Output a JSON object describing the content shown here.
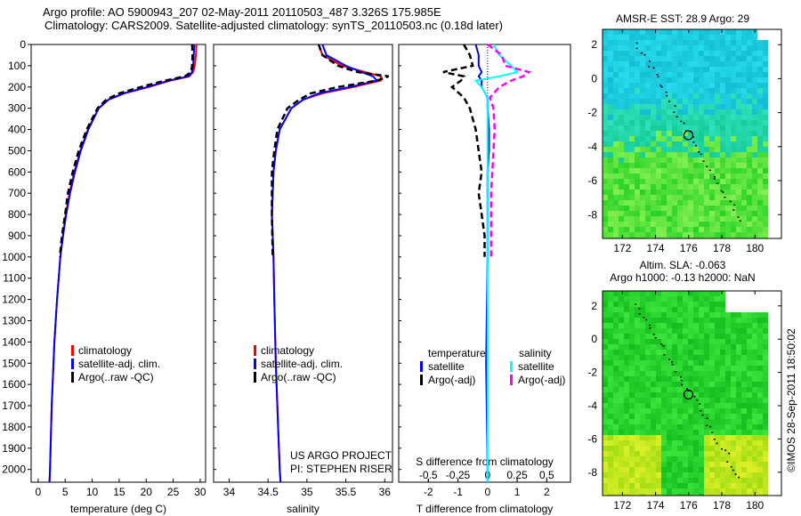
{
  "title_line1": "Argo profile: AO 5900943_207 02-May-2011 20110503_487 3.326S 175.985E",
  "title_line2": "Climatology: CARS2009. Satellite-adjusted climatology: synTS_20110503.nc (0.18d later)",
  "side_stamp": "©IMOS 28-Sep-2011 18:50:02",
  "colors": {
    "climatology": "#ff0000",
    "satellite": "#0000ff",
    "argo": "#000000",
    "sal_sat": "#00ffff",
    "sal_argo": "#ff00ff"
  },
  "chart_data": [
    {
      "type": "line",
      "xlabel": "temperature (deg C)",
      "xlim": [
        -1.3,
        31
      ],
      "ylim": [
        0,
        2060
      ],
      "yticks": [
        0,
        100,
        200,
        300,
        400,
        500,
        600,
        700,
        800,
        900,
        1000,
        1100,
        1200,
        1300,
        1400,
        1500,
        1600,
        1700,
        1800,
        1900,
        2000
      ],
      "xticks": [
        0,
        5,
        10,
        15,
        20,
        25,
        30
      ],
      "legend": [
        "climatology",
        "satellite-adj. clim.",
        "Argo(..raw -QC)"
      ],
      "depth": [
        0,
        50,
        100,
        130,
        150,
        170,
        200,
        230,
        260,
        300,
        400,
        500,
        600,
        700,
        800,
        900,
        1000,
        1200,
        1400,
        1700,
        2000,
        2060
      ],
      "series": [
        {
          "name": "climatology",
          "values": [
            29.3,
            29.2,
            29.0,
            28.7,
            28.0,
            24.5,
            20.5,
            16,
            13,
            11.2,
            9.2,
            7.8,
            6.7,
            5.8,
            5.1,
            4.6,
            4.1,
            3.5,
            3.0,
            2.5,
            2.2,
            2.1
          ]
        },
        {
          "name": "satellite-adj. clim.",
          "values": [
            28.9,
            28.8,
            28.7,
            28.5,
            27.8,
            24.2,
            20.2,
            15.8,
            13,
            11.2,
            9.3,
            7.9,
            6.8,
            5.9,
            5.2,
            4.6,
            4.1,
            3.5,
            3.0,
            2.5,
            2.2,
            2.1
          ]
        },
        {
          "name": "Argo(..raw -QC)",
          "values": [
            28.5,
            28.6,
            28.5,
            28.3,
            27.2,
            23.5,
            19.0,
            15.0,
            12.6,
            11.0,
            9.0,
            7.5,
            6.4,
            5.5,
            5.0,
            4.4,
            4.0,
            null,
            null,
            null,
            null,
            null
          ]
        }
      ]
    },
    {
      "type": "line",
      "xlabel": "salinity",
      "xlim": [
        33.8,
        36.1
      ],
      "xticks": [
        34,
        34.5,
        35,
        35.5,
        36
      ],
      "legend": [
        "climatology",
        "satellite-adj. clim.",
        "Argo(..raw -QC)"
      ],
      "annotation": [
        "US ARGO PROJECT",
        "PI: STEPHEN RISER"
      ],
      "depth": [
        0,
        50,
        100,
        130,
        150,
        170,
        200,
        230,
        260,
        300,
        400,
        500,
        600,
        800,
        1000,
        1200,
        1500,
        1800,
        2000,
        2060
      ],
      "series": [
        {
          "name": "climatology",
          "values": [
            35.15,
            35.2,
            35.45,
            35.75,
            35.95,
            35.95,
            35.6,
            35.2,
            34.95,
            34.8,
            34.65,
            34.6,
            34.57,
            34.55,
            34.57,
            34.58,
            34.6,
            34.63,
            34.65,
            34.66
          ]
        },
        {
          "name": "satellite-adj. clim.",
          "values": [
            35.2,
            35.25,
            35.5,
            35.7,
            35.85,
            35.9,
            35.55,
            35.15,
            34.95,
            34.8,
            34.65,
            34.6,
            34.57,
            34.55,
            34.57,
            34.58,
            34.6,
            34.63,
            34.65,
            34.66
          ]
        },
        {
          "name": "Argo(..raw -QC)",
          "values": [
            35.15,
            35.2,
            35.4,
            35.65,
            36.05,
            35.9,
            35.4,
            35.05,
            34.9,
            34.75,
            34.62,
            34.58,
            34.55,
            34.55,
            34.56,
            null,
            null,
            null,
            null,
            null
          ]
        }
      ]
    },
    {
      "type": "line",
      "xlabel": "T difference from climatology",
      "x2label": "S difference from climatology",
      "xlim": [
        -3,
        2.8
      ],
      "xticks": [
        -2,
        -1,
        0,
        1,
        2
      ],
      "x2ticks": [
        {
          "v": -0.5,
          "l": "-0.5"
        },
        {
          "v": -0.25,
          "l": "-0.25"
        },
        {
          "v": 0,
          "l": "0"
        },
        {
          "v": 0.25,
          "l": "0.25"
        },
        {
          "v": 0.5,
          "l": "0.5"
        }
      ],
      "legend_temperature": {
        "title": "temperature",
        "items": [
          "satellite",
          "Argo(-adj)"
        ]
      },
      "legend_salinity": {
        "title": "salinity",
        "items": [
          "satellite",
          "Argo(-adj)"
        ]
      },
      "depth": [
        0,
        50,
        100,
        130,
        150,
        170,
        200,
        250,
        300,
        400,
        500,
        600,
        700,
        800,
        900,
        1000,
        1500,
        2000,
        2060
      ],
      "series": [
        {
          "name": "temperature satellite",
          "values": [
            -0.4,
            -0.3,
            -0.3,
            -0.2,
            -0.3,
            -0.2,
            -0.2,
            0,
            0,
            0.05,
            0.05,
            0,
            0,
            0,
            0,
            0,
            -0.05,
            0,
            0
          ]
        },
        {
          "name": "temperature Argo(-adj)",
          "values": [
            -0.8,
            -0.6,
            -0.5,
            -1.5,
            -0.8,
            -0.9,
            -1.2,
            -0.8,
            -0.6,
            -0.4,
            -0.3,
            -0.2,
            -0.3,
            -0.2,
            -0.1,
            -0.1,
            null,
            null,
            null
          ]
        },
        {
          "name": "salinity satellite",
          "values": [
            0.05,
            0.1,
            0.2,
            0.25,
            0.1,
            -0.1,
            -0.05,
            0,
            0,
            0,
            0,
            0,
            0,
            0,
            0,
            0,
            0,
            0,
            0
          ]
        },
        {
          "name": "salinity Argo(-adj)",
          "values": [
            0,
            0.12,
            0.15,
            0.35,
            0.3,
            0.2,
            0.1,
            0.02,
            0.05,
            0.06,
            0.05,
            0.04,
            0.03,
            0.03,
            0.03,
            0.03,
            null,
            null,
            null
          ]
        }
      ]
    },
    {
      "type": "heatmap",
      "title": "AMSR-E SST: 28.9 Argo: 29",
      "xticks": [
        172,
        174,
        176,
        178,
        180
      ],
      "yticks": [
        2,
        0,
        -2,
        -4,
        -6,
        -8
      ],
      "xlim": [
        170.8,
        181.6
      ],
      "ylim": [
        -9.4,
        2.9
      ],
      "argo_position": [
        175.985,
        -3.326
      ]
    },
    {
      "type": "heatmap",
      "title_line1": "Altim. SLA: -0.063",
      "title_line2": "Argo h1000: -0.13 h2000: NaN",
      "xticks": [
        172,
        174,
        176,
        178,
        180
      ],
      "yticks": [
        2,
        0,
        -2,
        -4,
        -6,
        -8
      ],
      "xlim": [
        170.8,
        181.6
      ],
      "ylim": [
        -9.4,
        2.9
      ],
      "argo_position": [
        175.985,
        -3.326
      ]
    }
  ]
}
